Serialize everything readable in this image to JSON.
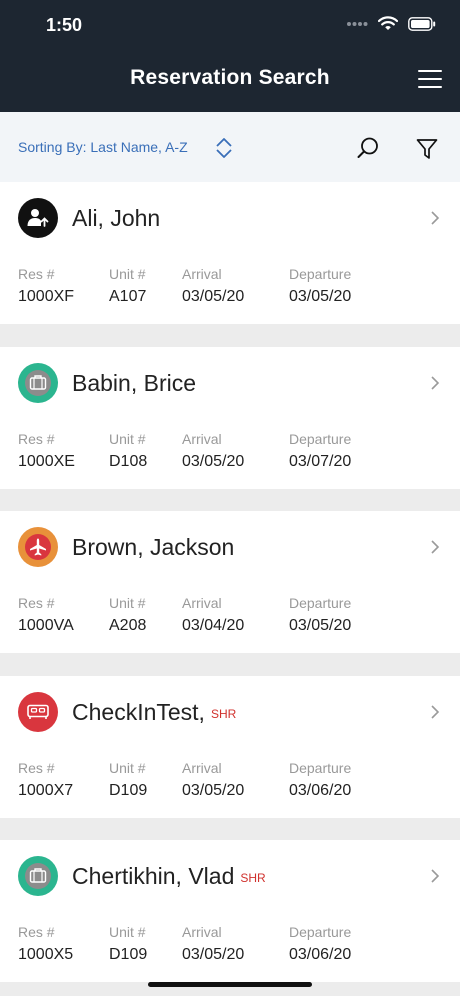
{
  "status_bar": {
    "time": "1:50"
  },
  "header": {
    "title": "Reservation Search"
  },
  "toolbar": {
    "sort_label": "Sorting By: Last Name, A-Z"
  },
  "field_labels": {
    "res": "Res #",
    "unit": "Unit #",
    "arrival": "Arrival",
    "departure": "Departure"
  },
  "reservations": [
    {
      "name": "Ali, John",
      "tag": "",
      "icon": "person-arrow-up-icon",
      "avatar_color": "#111111",
      "res": "1000XF",
      "unit": "A107",
      "arrival": "03/05/20",
      "departure": "03/05/20"
    },
    {
      "name": "Babin, Brice",
      "tag": "",
      "icon": "luggage-icon",
      "avatar_color": "#2bb58f",
      "res": "1000XE",
      "unit": "D108",
      "arrival": "03/05/20",
      "departure": "03/07/20"
    },
    {
      "name": "Brown, Jackson",
      "tag": "",
      "icon": "airplane-icon",
      "avatar_color": "#e8913a",
      "res": "1000VA",
      "unit": "A208",
      "arrival": "03/04/20",
      "departure": "03/05/20"
    },
    {
      "name": "CheckInTest,",
      "tag": "SHR",
      "icon": "bed-icon",
      "avatar_color": "#d9363e",
      "res": "1000X7",
      "unit": "D109",
      "arrival": "03/05/20",
      "departure": "03/06/20"
    },
    {
      "name": "Chertikhin, Vlad",
      "tag": "SHR",
      "icon": "luggage-icon",
      "avatar_color": "#2bb58f",
      "res": "1000X5",
      "unit": "D109",
      "arrival": "03/05/20",
      "departure": "03/06/20"
    }
  ]
}
